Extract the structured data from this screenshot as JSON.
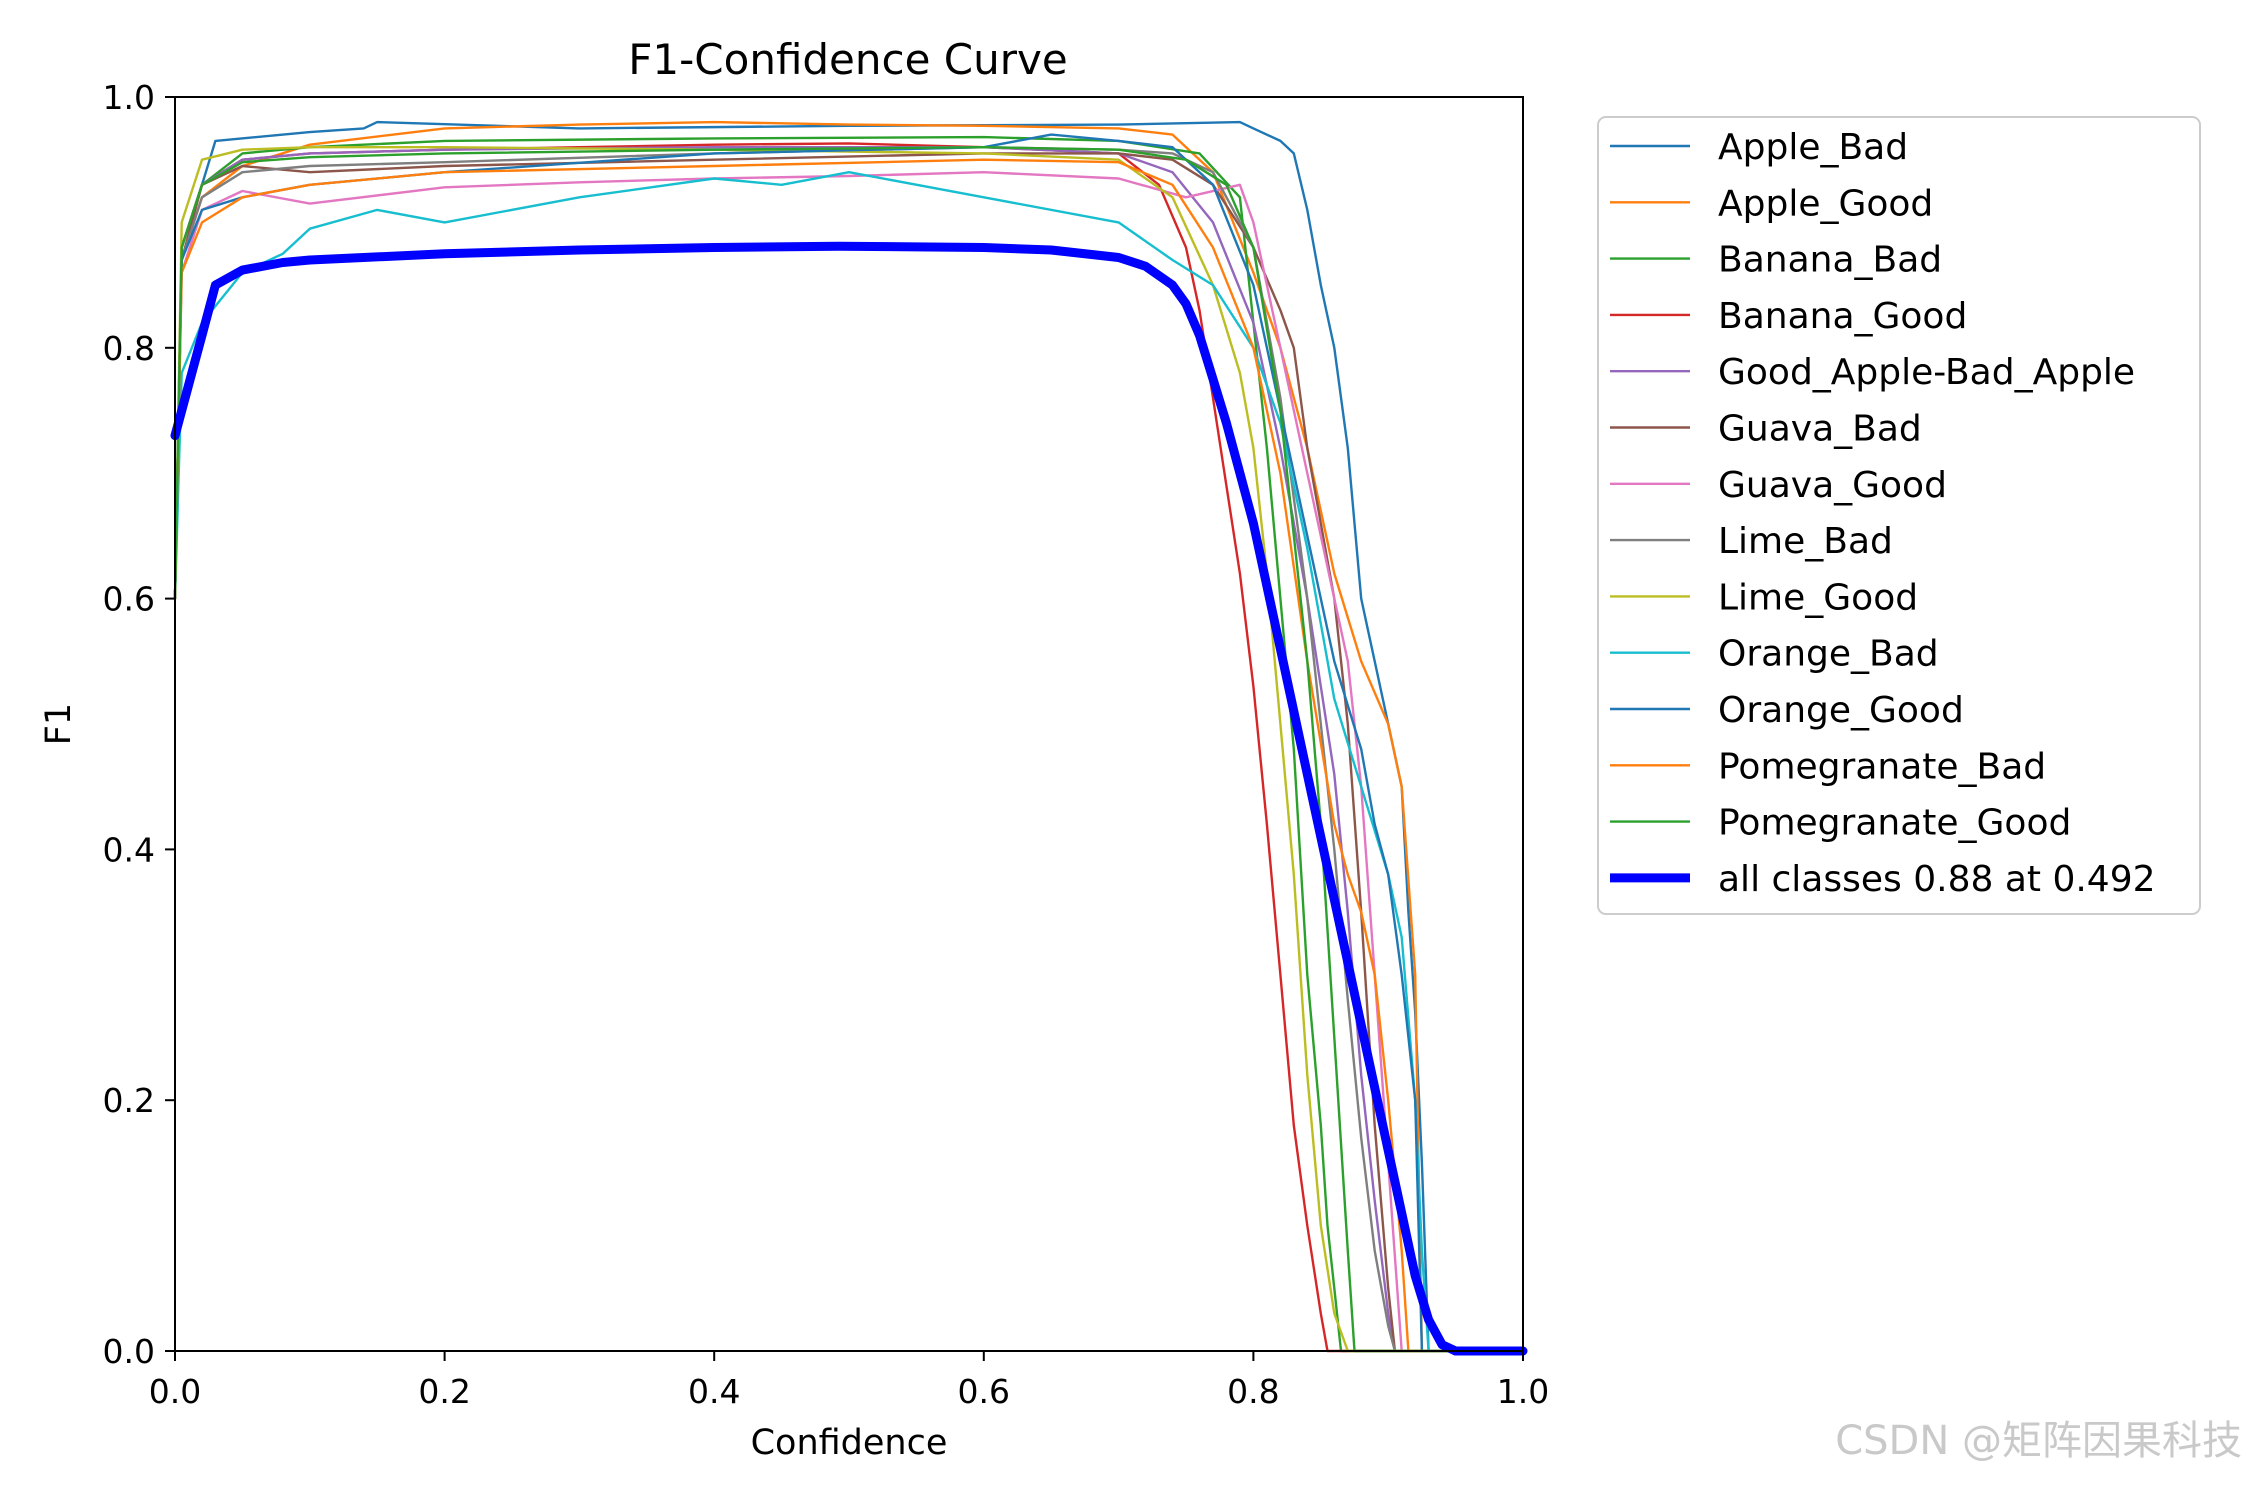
{
  "watermark": "CSDN @矩阵因果科技",
  "chart_data": {
    "type": "line",
    "title": "F1-Confidence Curve",
    "xlabel": "Confidence",
    "ylabel": "F1",
    "xlim": [
      0,
      1
    ],
    "ylim": [
      0,
      1
    ],
    "xticks": [
      "0.0",
      "0.2",
      "0.4",
      "0.6",
      "0.8",
      "1.0"
    ],
    "yticks": [
      "0.0",
      "0.2",
      "0.4",
      "0.6",
      "0.8",
      "1.0"
    ],
    "grid": false,
    "legend_position": "outside-right-top",
    "series": [
      {
        "name": "Apple_Bad",
        "color": "#1f77b4",
        "x": [
          0,
          0.005,
          0.02,
          0.03,
          0.1,
          0.14,
          0.15,
          0.3,
          0.5,
          0.7,
          0.79,
          0.8,
          0.82,
          0.83,
          0.84,
          0.85,
          0.86,
          0.87,
          0.88,
          0.89,
          0.9,
          0.91,
          0.915,
          0.92,
          0.925,
          0.93,
          1.0
        ],
        "y": [
          0.6,
          0.88,
          0.93,
          0.965,
          0.972,
          0.975,
          0.98,
          0.975,
          0.977,
          0.978,
          0.98,
          0.975,
          0.965,
          0.955,
          0.91,
          0.85,
          0.8,
          0.72,
          0.6,
          0.55,
          0.5,
          0.45,
          0.35,
          0.27,
          0.15,
          0.0,
          0.0
        ]
      },
      {
        "name": "Apple_Good",
        "color": "#ff7f0e",
        "x": [
          0,
          0.005,
          0.02,
          0.05,
          0.1,
          0.2,
          0.3,
          0.4,
          0.5,
          0.6,
          0.7,
          0.74,
          0.77,
          0.8,
          0.82,
          0.84,
          0.86,
          0.88,
          0.9,
          0.91,
          0.92,
          0.925,
          1.0
        ],
        "y": [
          0.6,
          0.87,
          0.92,
          0.945,
          0.962,
          0.975,
          0.978,
          0.98,
          0.978,
          0.977,
          0.975,
          0.97,
          0.94,
          0.86,
          0.8,
          0.72,
          0.62,
          0.55,
          0.5,
          0.45,
          0.3,
          0.0,
          0.0
        ]
      },
      {
        "name": "Banana_Bad",
        "color": "#2ca02c",
        "x": [
          0,
          0.005,
          0.02,
          0.05,
          0.1,
          0.2,
          0.4,
          0.6,
          0.7,
          0.76,
          0.79,
          0.8,
          0.81,
          0.82,
          0.83,
          0.84,
          0.85,
          0.855,
          0.86,
          0.865,
          1.0
        ],
        "y": [
          0.6,
          0.88,
          0.93,
          0.955,
          0.96,
          0.965,
          0.967,
          0.968,
          0.965,
          0.955,
          0.92,
          0.82,
          0.72,
          0.6,
          0.48,
          0.3,
          0.18,
          0.1,
          0.05,
          0.0,
          0.0
        ]
      },
      {
        "name": "Banana_Good",
        "color": "#d62728",
        "x": [
          0,
          0.005,
          0.02,
          0.05,
          0.1,
          0.2,
          0.3,
          0.4,
          0.5,
          0.6,
          0.7,
          0.73,
          0.75,
          0.76,
          0.77,
          0.78,
          0.79,
          0.8,
          0.81,
          0.82,
          0.83,
          0.84,
          0.85,
          0.855,
          1.0
        ],
        "y": [
          0.6,
          0.88,
          0.93,
          0.95,
          0.955,
          0.958,
          0.96,
          0.962,
          0.963,
          0.96,
          0.955,
          0.93,
          0.88,
          0.83,
          0.76,
          0.69,
          0.62,
          0.53,
          0.42,
          0.3,
          0.18,
          0.1,
          0.03,
          0.0,
          0.0
        ]
      },
      {
        "name": "Good_Apple-Bad_Apple",
        "color": "#9467bd",
        "x": [
          0,
          0.005,
          0.02,
          0.05,
          0.1,
          0.2,
          0.4,
          0.6,
          0.7,
          0.74,
          0.77,
          0.8,
          0.82,
          0.84,
          0.86,
          0.87,
          0.88,
          0.89,
          0.9,
          0.905,
          1.0
        ],
        "y": [
          0.6,
          0.88,
          0.93,
          0.95,
          0.955,
          0.958,
          0.96,
          0.96,
          0.955,
          0.94,
          0.9,
          0.82,
          0.72,
          0.6,
          0.46,
          0.35,
          0.22,
          0.12,
          0.03,
          0.0,
          0.0
        ]
      },
      {
        "name": "Guava_Bad",
        "color": "#8c564b",
        "x": [
          0,
          0.005,
          0.02,
          0.05,
          0.1,
          0.2,
          0.4,
          0.6,
          0.7,
          0.74,
          0.77,
          0.8,
          0.82,
          0.83,
          0.84,
          0.86,
          0.87,
          0.88,
          0.89,
          0.9,
          0.905,
          1.0
        ],
        "y": [
          0.6,
          0.87,
          0.93,
          0.945,
          0.94,
          0.945,
          0.95,
          0.955,
          0.955,
          0.95,
          0.93,
          0.88,
          0.83,
          0.8,
          0.72,
          0.6,
          0.5,
          0.35,
          0.18,
          0.05,
          0.0,
          0.0
        ]
      },
      {
        "name": "Guava_Good",
        "color": "#e377c2",
        "x": [
          0,
          0.005,
          0.02,
          0.05,
          0.1,
          0.2,
          0.3,
          0.4,
          0.5,
          0.6,
          0.7,
          0.75,
          0.79,
          0.8,
          0.82,
          0.84,
          0.86,
          0.87,
          0.88,
          0.89,
          0.9,
          0.91,
          1.0
        ],
        "y": [
          0.6,
          0.86,
          0.91,
          0.925,
          0.915,
          0.928,
          0.932,
          0.935,
          0.937,
          0.94,
          0.935,
          0.92,
          0.93,
          0.9,
          0.8,
          0.7,
          0.6,
          0.55,
          0.45,
          0.3,
          0.15,
          0.0,
          0.0
        ]
      },
      {
        "name": "Lime_Bad",
        "color": "#7f7f7f",
        "x": [
          0,
          0.005,
          0.02,
          0.05,
          0.1,
          0.2,
          0.4,
          0.6,
          0.7,
          0.74,
          0.77,
          0.8,
          0.82,
          0.84,
          0.86,
          0.87,
          0.88,
          0.89,
          0.9,
          0.905,
          1.0
        ],
        "y": [
          0.6,
          0.87,
          0.92,
          0.94,
          0.945,
          0.948,
          0.955,
          0.96,
          0.958,
          0.955,
          0.94,
          0.88,
          0.76,
          0.6,
          0.4,
          0.28,
          0.17,
          0.08,
          0.02,
          0.0,
          0.0
        ]
      },
      {
        "name": "Lime_Good",
        "color": "#bcbd22",
        "x": [
          0,
          0.005,
          0.02,
          0.05,
          0.1,
          0.2,
          0.4,
          0.6,
          0.7,
          0.74,
          0.77,
          0.79,
          0.8,
          0.81,
          0.82,
          0.83,
          0.84,
          0.85,
          0.86,
          0.87,
          1.0
        ],
        "y": [
          0.6,
          0.9,
          0.95,
          0.958,
          0.96,
          0.96,
          0.958,
          0.955,
          0.95,
          0.92,
          0.85,
          0.78,
          0.72,
          0.62,
          0.5,
          0.38,
          0.22,
          0.1,
          0.03,
          0.0,
          0.0
        ]
      },
      {
        "name": "Orange_Bad",
        "color": "#17becf",
        "x": [
          0,
          0.005,
          0.02,
          0.05,
          0.08,
          0.1,
          0.15,
          0.2,
          0.3,
          0.4,
          0.45,
          0.5,
          0.6,
          0.7,
          0.74,
          0.77,
          0.8,
          0.82,
          0.84,
          0.86,
          0.88,
          0.9,
          0.91,
          0.92,
          0.925,
          0.93,
          1.0
        ],
        "y": [
          0.6,
          0.78,
          0.82,
          0.86,
          0.875,
          0.895,
          0.91,
          0.9,
          0.92,
          0.935,
          0.93,
          0.94,
          0.92,
          0.9,
          0.87,
          0.85,
          0.8,
          0.74,
          0.64,
          0.52,
          0.45,
          0.38,
          0.33,
          0.2,
          0.08,
          0.0,
          0.0
        ]
      },
      {
        "name": "Orange_Good",
        "color": "#1f77b4",
        "x": [
          0,
          0.005,
          0.02,
          0.05,
          0.1,
          0.2,
          0.4,
          0.6,
          0.65,
          0.7,
          0.74,
          0.77,
          0.8,
          0.82,
          0.84,
          0.86,
          0.88,
          0.89,
          0.9,
          0.91,
          0.92,
          0.925,
          1.0
        ],
        "y": [
          0.6,
          0.87,
          0.91,
          0.92,
          0.93,
          0.94,
          0.955,
          0.96,
          0.97,
          0.965,
          0.96,
          0.93,
          0.85,
          0.75,
          0.65,
          0.55,
          0.48,
          0.42,
          0.38,
          0.3,
          0.2,
          0.0,
          0.0
        ]
      },
      {
        "name": "Pomegranate_Bad",
        "color": "#ff7f0e",
        "x": [
          0,
          0.005,
          0.02,
          0.05,
          0.1,
          0.2,
          0.4,
          0.6,
          0.7,
          0.74,
          0.77,
          0.8,
          0.82,
          0.84,
          0.86,
          0.87,
          0.88,
          0.89,
          0.9,
          0.91,
          0.915,
          1.0
        ],
        "y": [
          0.6,
          0.86,
          0.9,
          0.92,
          0.93,
          0.94,
          0.945,
          0.95,
          0.948,
          0.93,
          0.88,
          0.8,
          0.7,
          0.55,
          0.42,
          0.38,
          0.35,
          0.3,
          0.2,
          0.08,
          0.0,
          0.0
        ]
      },
      {
        "name": "Pomegranate_Good",
        "color": "#2ca02c",
        "x": [
          0,
          0.005,
          0.02,
          0.05,
          0.1,
          0.2,
          0.4,
          0.6,
          0.7,
          0.75,
          0.78,
          0.8,
          0.82,
          0.84,
          0.85,
          0.86,
          0.87,
          0.875,
          1.0
        ],
        "y": [
          0.6,
          0.88,
          0.93,
          0.948,
          0.952,
          0.955,
          0.958,
          0.96,
          0.958,
          0.95,
          0.93,
          0.88,
          0.75,
          0.55,
          0.42,
          0.25,
          0.08,
          0.0,
          0.0
        ]
      },
      {
        "name": "all classes 0.88 at 0.492",
        "color": "#0000ff",
        "bold": true,
        "x": [
          0,
          0.01,
          0.02,
          0.03,
          0.05,
          0.08,
          0.1,
          0.2,
          0.3,
          0.4,
          0.492,
          0.6,
          0.65,
          0.7,
          0.72,
          0.74,
          0.75,
          0.76,
          0.77,
          0.78,
          0.79,
          0.8,
          0.82,
          0.84,
          0.86,
          0.88,
          0.9,
          0.92,
          0.93,
          0.94,
          0.95,
          1.0
        ],
        "y": [
          0.73,
          0.77,
          0.81,
          0.85,
          0.862,
          0.868,
          0.87,
          0.875,
          0.878,
          0.88,
          0.881,
          0.88,
          0.878,
          0.872,
          0.865,
          0.85,
          0.835,
          0.81,
          0.775,
          0.74,
          0.7,
          0.66,
          0.56,
          0.46,
          0.36,
          0.26,
          0.16,
          0.06,
          0.025,
          0.005,
          0.0,
          0.0
        ]
      }
    ]
  }
}
